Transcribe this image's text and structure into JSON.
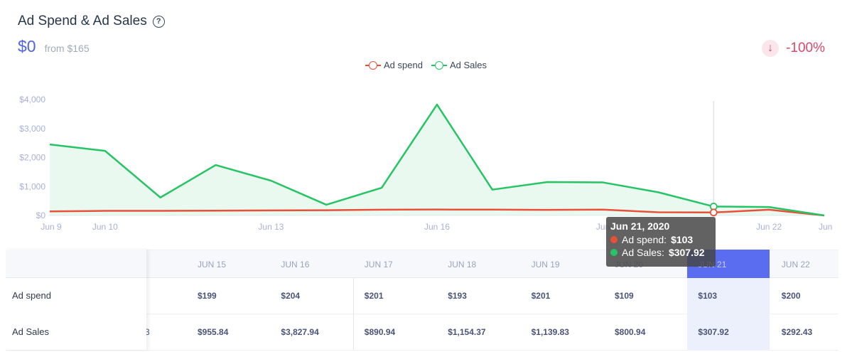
{
  "header": {
    "title": "Ad Spend & Ad Sales",
    "value": "$0",
    "from": "from $165",
    "delta": "-100%",
    "delta_icon": "arrow-down-icon"
  },
  "legend": [
    {
      "label": "Ad spend",
      "color": "#e8503a"
    },
    {
      "label": "Ad Sales",
      "color": "#26c464"
    }
  ],
  "chart_data": {
    "type": "line",
    "x": [
      "Jun 9",
      "Jun 10",
      "Jun 11",
      "Jun 12",
      "Jun 13",
      "Jun 14",
      "Jun 15",
      "Jun 16",
      "Jun 17",
      "Jun 18",
      "Jun 19",
      "Jun 20",
      "Jun 21",
      "Jun 22",
      "Jun 23"
    ],
    "x_tick_labels": [
      "Jun 9",
      "Jun 10",
      "Jun 13",
      "Jun 16",
      "Jun",
      "Jun 22",
      "Jun"
    ],
    "y_tick_labels": [
      "$0",
      "$1,000",
      "$2,000",
      "$3,000",
      "$4,000"
    ],
    "ylim": [
      0,
      4000
    ],
    "series": [
      {
        "name": "Ad spend",
        "color": "#e8503a",
        "values": [
          140,
          160,
          160,
          165,
          175,
          180,
          199,
          204,
          201,
          193,
          201,
          109,
          103,
          200,
          0
        ]
      },
      {
        "name": "Ad Sales",
        "color": "#26c464",
        "values": [
          2450,
          2230,
          620,
          1740,
          1200,
          370,
          955.84,
          3827.94,
          890.94,
          1154.37,
          1139.83,
          800.94,
          307.92,
          292.43,
          0
        ]
      }
    ],
    "area_fill": "Ad Sales",
    "grid": false,
    "legend_position": "top-center"
  },
  "tooltip": {
    "title": "Jun 21, 2020",
    "rows": [
      {
        "label": "Ad spend:",
        "value": "$103",
        "color": "#e8503a"
      },
      {
        "label": "Ad Sales:",
        "value": "$307.92",
        "color": "#26c464"
      }
    ]
  },
  "table": {
    "columns": [
      "JUN 15",
      "JUN 16",
      "JUN 17",
      "JUN 18",
      "JUN 19",
      "JUN 20",
      "JUN 21",
      "JUN 22"
    ],
    "highlight_column": "JUN 21",
    "rows": [
      {
        "label": "Ad spend",
        "values": [
          "$199",
          "$204",
          "$201",
          "$193",
          "$201",
          "$109",
          "$103",
          "$200"
        ]
      },
      {
        "label": "Ad Sales",
        "values": [
          "$955.84",
          "$3,827.94",
          "$890.94",
          "$1,154.37",
          "$1,139.83",
          "$800.94",
          "$307.92",
          "$292.43"
        ]
      }
    ],
    "cut_glyph": "3"
  },
  "colors": {
    "accent": "#5264e6",
    "negative": "#e0456a",
    "highlight": "#5a6df0"
  }
}
